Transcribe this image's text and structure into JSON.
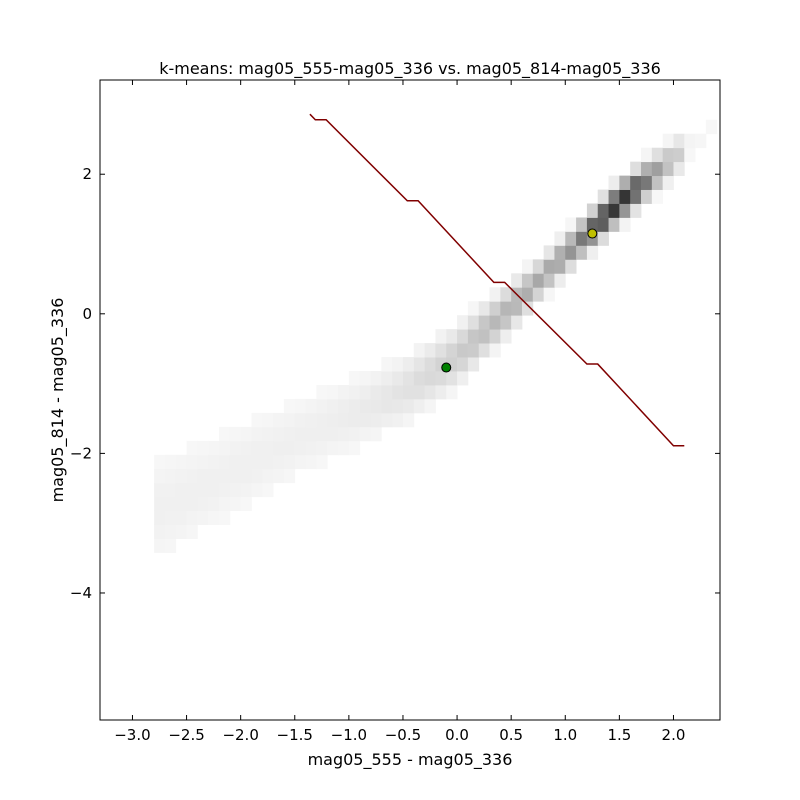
{
  "chart_data": {
    "type": "heatmap",
    "title": "k-means: mag05_555-mag05_336 vs. mag05_814-mag05_336",
    "xlabel": "mag05_555 - mag05_336",
    "ylabel": "mag05_814 - mag05_336",
    "xlim": [
      -3.3,
      2.43
    ],
    "ylim": [
      -5.82,
      3.35
    ],
    "xticks": [
      -3.0,
      -2.5,
      -2.0,
      -1.5,
      -1.0,
      -0.5,
      0.0,
      0.5,
      1.0,
      1.5,
      2.0
    ],
    "xtick_labels": [
      "−3.0",
      "−2.5",
      "−2.0",
      "−1.5",
      "−1.0",
      "−0.5",
      "0.0",
      "0.5",
      "1.0",
      "1.5",
      "2.0"
    ],
    "yticks": [
      -4,
      -2,
      0,
      2
    ],
    "ytick_labels": [
      "−4",
      "−2",
      "0",
      "2"
    ],
    "grid": false,
    "colormap": "binary",
    "density_ridge": {
      "x": [
        -2.5,
        -1.5,
        -0.5,
        0.0,
        0.5,
        1.0,
        1.5,
        1.9
      ],
      "y": [
        -2.6,
        -1.8,
        -1.1,
        -0.6,
        0.1,
        0.85,
        1.6,
        2.1
      ],
      "peak": [
        1.5,
        1.6
      ]
    },
    "cluster_centers": [
      {
        "x": -0.1,
        "y": -0.77,
        "color": "#008000"
      },
      {
        "x": 1.25,
        "y": 1.15,
        "color": "#bfbf00"
      }
    ],
    "decision_boundary": {
      "color": "#800000",
      "x": [
        -1.36,
        -1.31,
        -1.21,
        -0.46,
        -0.36,
        0.34,
        0.44,
        1.2,
        1.3,
        2.0,
        2.1
      ],
      "y": [
        2.86,
        2.78,
        2.78,
        1.62,
        1.62,
        0.45,
        0.45,
        -0.72,
        -0.72,
        -1.89,
        -1.89
      ]
    }
  }
}
